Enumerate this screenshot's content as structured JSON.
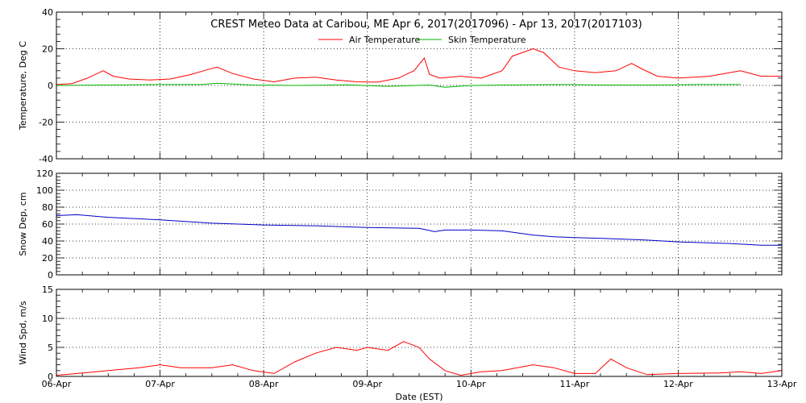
{
  "chart_data": {
    "type": "line",
    "title": "CREST Meteo Data at Caribou, ME   Apr  6, 2017(2017096) - Apr 13, 2017(2017103)",
    "xlabel": "Date (EST)",
    "x_range": [
      "2017-04-06",
      "2017-04-13"
    ],
    "x_ticks": [
      "06-Apr",
      "07-Apr",
      "08-Apr",
      "09-Apr",
      "10-Apr",
      "11-Apr",
      "12-Apr",
      "13-Apr"
    ],
    "grid": true,
    "panels": [
      {
        "ylabel": "Temperature, Deg C",
        "ylim": [
          -40,
          40
        ],
        "yticks": [
          -40,
          -20,
          0,
          20,
          40
        ],
        "legend": "top-center",
        "series": [
          {
            "name": "Air Temperature",
            "color": "#ff0000",
            "x": [
              0.0,
              0.15,
              0.3,
              0.45,
              0.55,
              0.7,
              0.9,
              1.1,
              1.3,
              1.45,
              1.55,
              1.7,
              1.9,
              2.1,
              2.3,
              2.5,
              2.7,
              2.9,
              3.1,
              3.3,
              3.45,
              3.55,
              3.6,
              3.7,
              3.9,
              4.1,
              4.3,
              4.4,
              4.6,
              4.7,
              4.85,
              5.0,
              5.2,
              5.4,
              5.55,
              5.65,
              5.8,
              6.0,
              6.3,
              6.5,
              6.6,
              6.8,
              7.0
            ],
            "y": [
              0.5,
              1,
              4,
              8,
              5,
              3.5,
              3,
              3.5,
              6,
              8.5,
              10,
              6.5,
              3.5,
              2,
              4,
              4.5,
              3,
              2,
              1.8,
              4,
              8,
              15,
              6,
              4,
              5,
              4,
              8,
              16,
              20,
              18,
              10,
              8,
              7,
              8,
              12,
              9,
              5,
              4,
              5,
              7,
              8,
              5,
              5
            ]
          },
          {
            "name": "Skin Temperature",
            "color": "#00b400",
            "x": [
              0.0,
              0.5,
              1.0,
              1.4,
              1.55,
              1.9,
              2.3,
              2.8,
              3.2,
              3.6,
              3.75,
              4.0,
              4.5,
              4.9,
              5.3,
              5.8,
              6.2,
              6.6
            ],
            "y": [
              0,
              0.2,
              0.5,
              0.5,
              1.2,
              0.2,
              0,
              0.3,
              -0.5,
              0.2,
              -1,
              0,
              0.3,
              0.5,
              0.2,
              0.2,
              0.5,
              0.5
            ]
          }
        ]
      },
      {
        "ylabel": "Snow Dep, cm",
        "ylim": [
          0,
          120
        ],
        "yticks": [
          0,
          20,
          40,
          60,
          80,
          100,
          120
        ],
        "series": [
          {
            "name": "",
            "color": "#0000c8",
            "x": [
              0.0,
              0.2,
              0.5,
              1.0,
              1.5,
              2.0,
              2.5,
              3.0,
              3.5,
              3.65,
              3.75,
              4.0,
              4.3,
              4.6,
              4.8,
              5.0,
              5.3,
              5.7,
              6.0,
              6.5,
              6.8,
              7.0
            ],
            "y": [
              70,
              71,
              68,
              65,
              61,
              59,
              58,
              56,
              55,
              51,
              53,
              53,
              52,
              47,
              45,
              44,
              43,
              41,
              39,
              37,
              35,
              35
            ]
          }
        ]
      },
      {
        "ylabel": "Wind Spd, m/s",
        "ylim": [
          0,
          15
        ],
        "yticks": [
          0,
          5,
          10,
          15
        ],
        "series": [
          {
            "name": "",
            "color": "#ff0000",
            "x": [
              0.0,
              0.2,
              0.5,
              0.8,
              1.0,
              1.2,
              1.5,
              1.7,
              1.9,
              2.1,
              2.3,
              2.5,
              2.7,
              2.9,
              3.0,
              3.2,
              3.35,
              3.5,
              3.6,
              3.75,
              3.9,
              4.1,
              4.3,
              4.6,
              4.8,
              5.0,
              5.2,
              5.35,
              5.5,
              5.7,
              6.0,
              6.4,
              6.6,
              6.8,
              7.0
            ],
            "y": [
              0.2,
              0.5,
              1,
              1.5,
              2,
              1.5,
              1.5,
              2,
              1,
              0.5,
              2.5,
              4,
              5,
              4.5,
              5,
              4.5,
              6,
              5,
              3,
              1,
              0.2,
              0.8,
              1,
              2,
              1.5,
              0.5,
              0.5,
              3,
              1.5,
              0.3,
              0.5,
              0.6,
              0.8,
              0.5,
              1
            ]
          }
        ]
      }
    ]
  }
}
